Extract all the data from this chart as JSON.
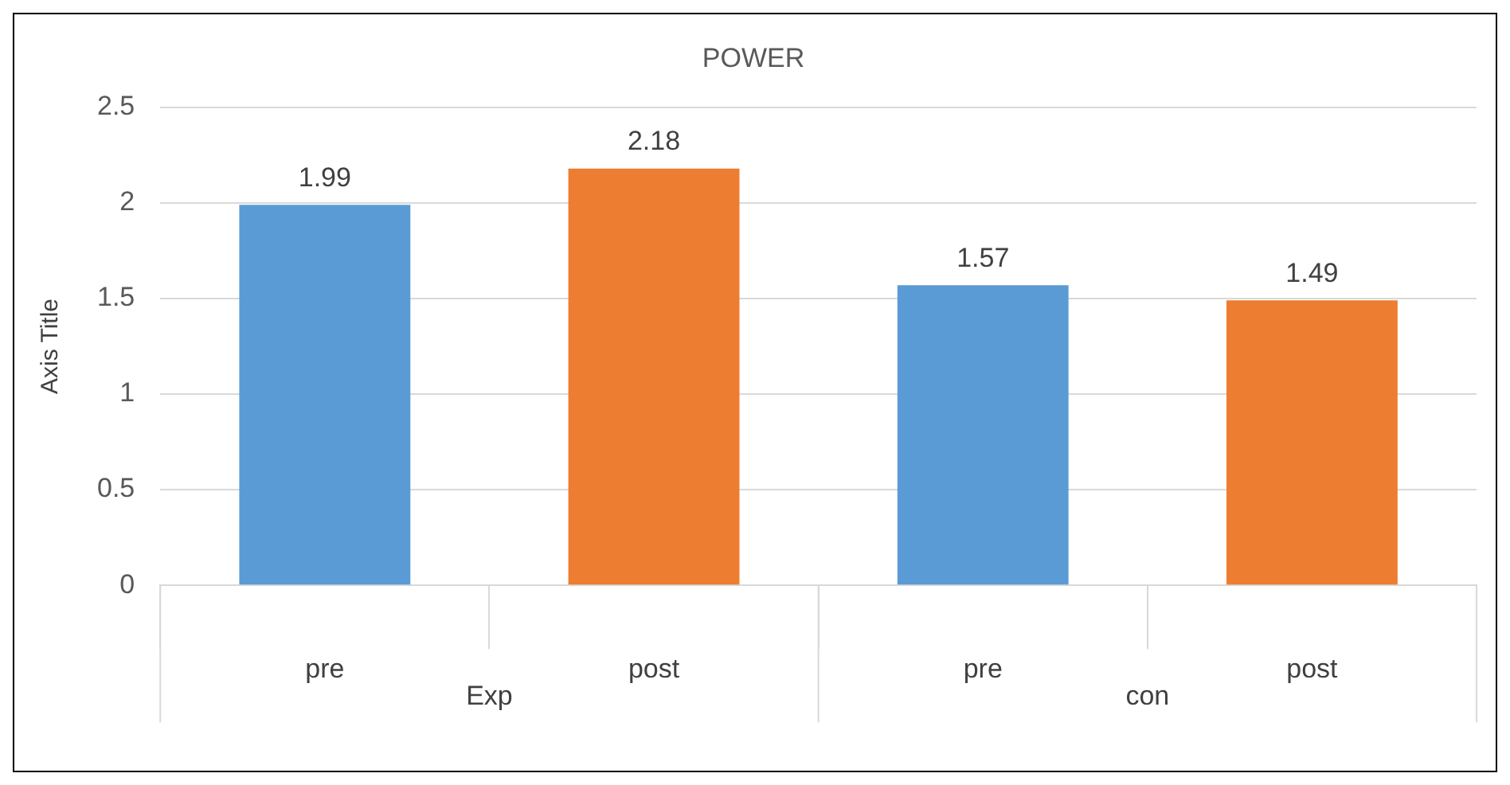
{
  "chart_data": {
    "type": "bar",
    "title": "POWER",
    "ylabel": "Axis Title",
    "categories": [
      "pre",
      "post",
      "pre",
      "post"
    ],
    "values": [
      1.99,
      2.18,
      1.57,
      1.49
    ],
    "colors": [
      "#5b9bd5",
      "#ed7d31",
      "#5b9bd5",
      "#ed7d31"
    ],
    "ylim": [
      0,
      2.5
    ],
    "yticks": [
      0,
      0.5,
      1,
      1.5,
      2,
      2.5
    ],
    "grid": "y",
    "data_labels": true,
    "legend": false,
    "annotations": [
      "Exp",
      "con"
    ]
  }
}
